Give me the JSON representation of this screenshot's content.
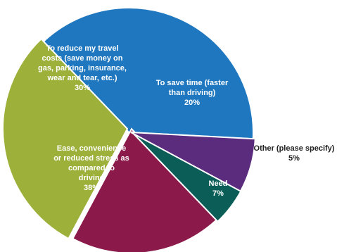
{
  "chart_data": {
    "type": "pie",
    "title": "",
    "slices": [
      {
        "label": "Ease, convenience or reduced stress as compared to driving",
        "value": 38,
        "value_label": "38%",
        "color": "#1F77BF",
        "label_lines": [
          "Ease, convenience",
          "or reduced stress as",
          "compared to",
          "driving"
        ]
      },
      {
        "label": "To reduce my travel costs (save money on gas, parking, insurance, wear and tear, etc.)",
        "value": 30,
        "value_label": "30%",
        "color": "#9CB03A",
        "label_lines": [
          "To reduce my travel",
          "costs (save money on",
          "gas, parking, insurance,",
          "wear and tear, etc.)"
        ]
      },
      {
        "label": "To save time (faster than driving)",
        "value": 20,
        "value_label": "20%",
        "color": "#8B1A4A",
        "label_lines": [
          "To save time (faster",
          "than driving)"
        ]
      },
      {
        "label": "Other (please specify)",
        "value": 5,
        "value_label": "5%",
        "color": "#0B5E57",
        "label_lines": [
          "Other (please specify)"
        ]
      },
      {
        "label": "Need",
        "value": 7,
        "value_label": "7%",
        "color": "#5B2C7E",
        "label_lines": [
          "Need"
        ]
      }
    ]
  }
}
